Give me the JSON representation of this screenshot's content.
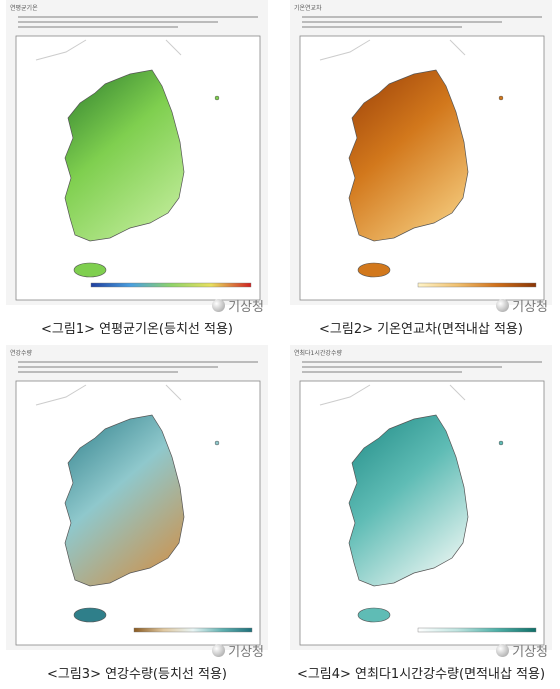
{
  "panels": [
    {
      "label": "연평균기온",
      "caption": "<그림1> 연평균기온(등치선 적용)",
      "logo": "기상청"
    },
    {
      "label": "기온연교차",
      "caption": "<그림2> 기온연교차(면적내삽 적용)",
      "logo": "기상청"
    },
    {
      "label": "연강수량",
      "caption": "<그림3> 연강수량(등치선 적용)",
      "logo": "기상청"
    },
    {
      "label": "연최다1시간강수량",
      "caption": "<그림4> 연최다1시간강수량(면적내삽 적용)",
      "logo": "기상청"
    }
  ]
}
